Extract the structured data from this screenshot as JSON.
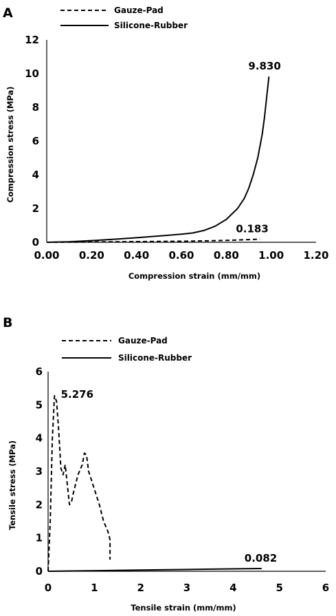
{
  "figure": {
    "background": "#ffffff"
  },
  "chart_data": [
    {
      "panel": "A",
      "type": "line",
      "xlabel": "Compression strain (mm/mm)",
      "ylabel": "Compression stress (MPa)",
      "xlim": [
        0,
        1.2
      ],
      "ylim": [
        0,
        12
      ],
      "xticks": [
        "0.00",
        "0.20",
        "0.40",
        "0.60",
        "0.80",
        "1.00",
        "1.20"
      ],
      "yticks": [
        "0",
        "2",
        "4",
        "6",
        "8",
        "10",
        "12"
      ],
      "legend_position": "top-left",
      "grid": false,
      "series": [
        {
          "name": "Gauze-Pad",
          "style": "dashed",
          "color": "#000000",
          "x": [
            0.0,
            0.1,
            0.2,
            0.3,
            0.4,
            0.5,
            0.6,
            0.7,
            0.8,
            0.9,
            0.95
          ],
          "y": [
            0.0,
            0.01,
            0.02,
            0.03,
            0.04,
            0.05,
            0.06,
            0.08,
            0.11,
            0.16,
            0.183
          ]
        },
        {
          "name": "Silicone-Rubber",
          "style": "solid",
          "color": "#000000",
          "x": [
            0.0,
            0.1,
            0.2,
            0.3,
            0.4,
            0.5,
            0.6,
            0.65,
            0.7,
            0.75,
            0.8,
            0.85,
            0.88,
            0.9,
            0.92,
            0.94,
            0.96,
            0.97,
            0.98,
            0.99
          ],
          "y": [
            0.0,
            0.03,
            0.1,
            0.18,
            0.27,
            0.37,
            0.48,
            0.55,
            0.7,
            0.95,
            1.35,
            2.0,
            2.6,
            3.2,
            4.0,
            5.0,
            6.4,
            7.4,
            8.6,
            9.83
          ]
        }
      ],
      "annotations": [
        {
          "text": "9.830",
          "x": 0.99,
          "y": 9.83
        },
        {
          "text": "0.183",
          "x": 0.95,
          "y": 0.183
        }
      ]
    },
    {
      "panel": "B",
      "type": "line",
      "xlabel": "Tensile strain (mm/mm)",
      "ylabel": "Tensile stress (MPa)",
      "xlim": [
        0,
        6.5
      ],
      "ylim": [
        0,
        6
      ],
      "xticks": [
        "0",
        "1",
        "2",
        "3",
        "4",
        "5",
        "6"
      ],
      "yticks": [
        "0",
        "1",
        "2",
        "3",
        "4",
        "5",
        "6"
      ],
      "legend_position": "top-left",
      "grid": false,
      "series": [
        {
          "name": "Gauze-Pad",
          "style": "dashed",
          "color": "#000000",
          "x": [
            0.0,
            0.05,
            0.1,
            0.15,
            0.2,
            0.25,
            0.3,
            0.35,
            0.4,
            0.45,
            0.5,
            0.55,
            0.6,
            0.7,
            0.8,
            0.85,
            0.9,
            0.95,
            1.0,
            1.1,
            1.2,
            1.3,
            1.4,
            1.45,
            1.45
          ],
          "y": [
            0.0,
            1.5,
            4.0,
            5.276,
            5.1,
            4.2,
            3.1,
            2.9,
            3.2,
            2.6,
            2.0,
            2.1,
            2.4,
            2.9,
            3.2,
            3.55,
            3.5,
            3.0,
            2.8,
            2.4,
            2.0,
            1.5,
            1.2,
            0.95,
            0.35
          ]
        },
        {
          "name": "Silicone-Rubber",
          "style": "solid",
          "color": "#000000",
          "x": [
            0.0,
            1.0,
            2.0,
            3.0,
            4.0,
            5.0
          ],
          "y": [
            0.0,
            0.016,
            0.033,
            0.049,
            0.066,
            0.082
          ]
        }
      ],
      "annotations": [
        {
          "text": "5.276",
          "x": 0.17,
          "y": 5.276
        },
        {
          "text": "0.082",
          "x": 5.0,
          "y": 0.082
        }
      ]
    }
  ]
}
